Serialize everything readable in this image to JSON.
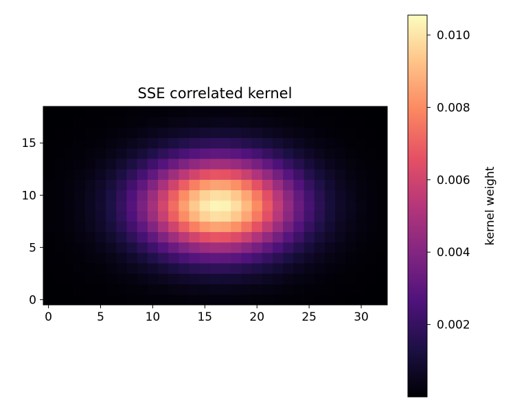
{
  "chart_data": {
    "type": "heatmap",
    "title": "SSE correlated kernel",
    "xlabel": "",
    "ylabel": "",
    "grid": false,
    "colormap": "magma",
    "x_range": [
      -0.5,
      32.5
    ],
    "y_range": [
      -0.5,
      18.5
    ],
    "x_ticks": [
      0,
      5,
      10,
      15,
      20,
      25,
      30
    ],
    "y_ticks": [
      0,
      5,
      10,
      15
    ],
    "x_tick_labels": [
      "0",
      "5",
      "10",
      "15",
      "20",
      "25",
      "30"
    ],
    "y_tick_labels": [
      "0",
      "5",
      "10",
      "15"
    ],
    "grid_shape": {
      "cols": 33,
      "rows": 19
    },
    "kernel": {
      "center_x": 16.3,
      "center_y": 9.0,
      "sigma_x": 5.1,
      "sigma_y": 3.2,
      "peak_value": 0.0104
    },
    "colorbar": {
      "label": "kernel weight",
      "vmin": 0.0,
      "vmax": 0.01055,
      "ticks": [
        0.002,
        0.004,
        0.006,
        0.008,
        0.01
      ],
      "tick_labels": [
        "0.002",
        "0.004",
        "0.006",
        "0.008",
        "0.010"
      ]
    }
  }
}
